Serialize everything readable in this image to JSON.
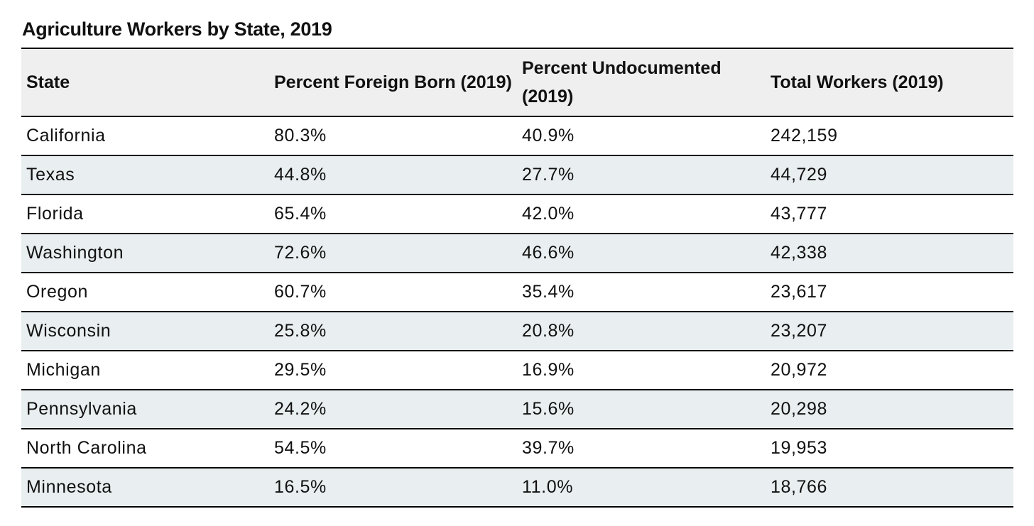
{
  "chart_data": {
    "type": "table",
    "title": "Agriculture Workers by State, 2019",
    "columns": [
      "State",
      "Percent Foreign Born (2019)",
      "Percent Undocumented (2019)",
      "Total Workers (2019)"
    ],
    "rows": [
      [
        "California",
        "80.3%",
        "40.9%",
        "242,159"
      ],
      [
        "Texas",
        "44.8%",
        "27.7%",
        "44,729"
      ],
      [
        "Florida",
        "65.4%",
        "42.0%",
        "43,777"
      ],
      [
        "Washington",
        "72.6%",
        "46.6%",
        "42,338"
      ],
      [
        "Oregon",
        "60.7%",
        "35.4%",
        "23,617"
      ],
      [
        "Wisconsin",
        "25.8%",
        "20.8%",
        "23,207"
      ],
      [
        "Michigan",
        "29.5%",
        "16.9%",
        "20,972"
      ],
      [
        "Pennsylvania",
        "24.2%",
        "15.6%",
        "20,298"
      ],
      [
        "North Carolina",
        "54.5%",
        "39.7%",
        "19,953"
      ],
      [
        "Minnesota",
        "16.5%",
        "11.0%",
        "18,766"
      ]
    ]
  },
  "colors": {
    "header_background": "#efefef",
    "alternate_row_background": "#e9eef0",
    "rule": "#000000"
  }
}
